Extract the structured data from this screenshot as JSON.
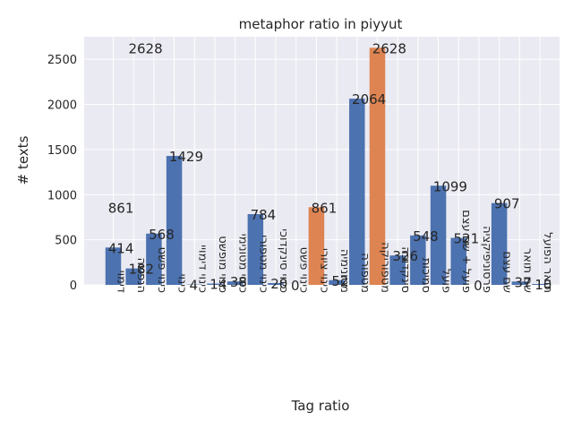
{
  "chart_data": {
    "type": "bar",
    "title": "metaphor ratio in piyyut",
    "xlabel": "Tag ratio",
    "ylabel": "# texts",
    "ylim": [
      0,
      2750
    ],
    "yticks": [
      0,
      500,
      1000,
      1500,
      2000,
      2500
    ],
    "grid": true,
    "colors": {
      "background": "#EAEAF2",
      "grid": "#ffffff",
      "text": "#262626",
      "bar_blue": "#4C72B0",
      "bar_orange": "#DD8452"
    },
    "categories": [
      "דימוי",
      "הנפשה",
      "כינוי פשט",
      "כינוי",
      "כינוי דימויי",
      "כינוי מופשט",
      "כינוי מטונימי",
      "כינוי מטפורי",
      "כינוי סינקדוכי",
      "כינוי פשט",
      "כינוי ציורי",
      "מטונימיה",
      "מטפורה",
      "מטפוריקה",
      "סינקדוכה",
      "סמיכות",
      "פועל",
      "פועל + שם עצם",
      "פרסוניפיקציה",
      "שם עצם",
      "שם תואר",
      "תואר הפועל"
    ],
    "values": [
      414,
      182,
      568,
      1429,
      4,
      14,
      38,
      784,
      20,
      0,
      861,
      52,
      2064,
      2628,
      326,
      548,
      1099,
      521,
      0,
      907,
      37,
      10
    ],
    "bar_colors": [
      "blue",
      "blue",
      "blue",
      "blue",
      "blue",
      "blue",
      "blue",
      "blue",
      "blue",
      "blue",
      "orange",
      "blue",
      "blue",
      "orange",
      "blue",
      "blue",
      "blue",
      "blue",
      "blue",
      "blue",
      "blue",
      "blue"
    ],
    "annotations": [
      {
        "text": "861",
        "x_index": 0,
        "y": 861
      },
      {
        "text": "2628",
        "x_index": 1,
        "y": 2628
      }
    ]
  }
}
